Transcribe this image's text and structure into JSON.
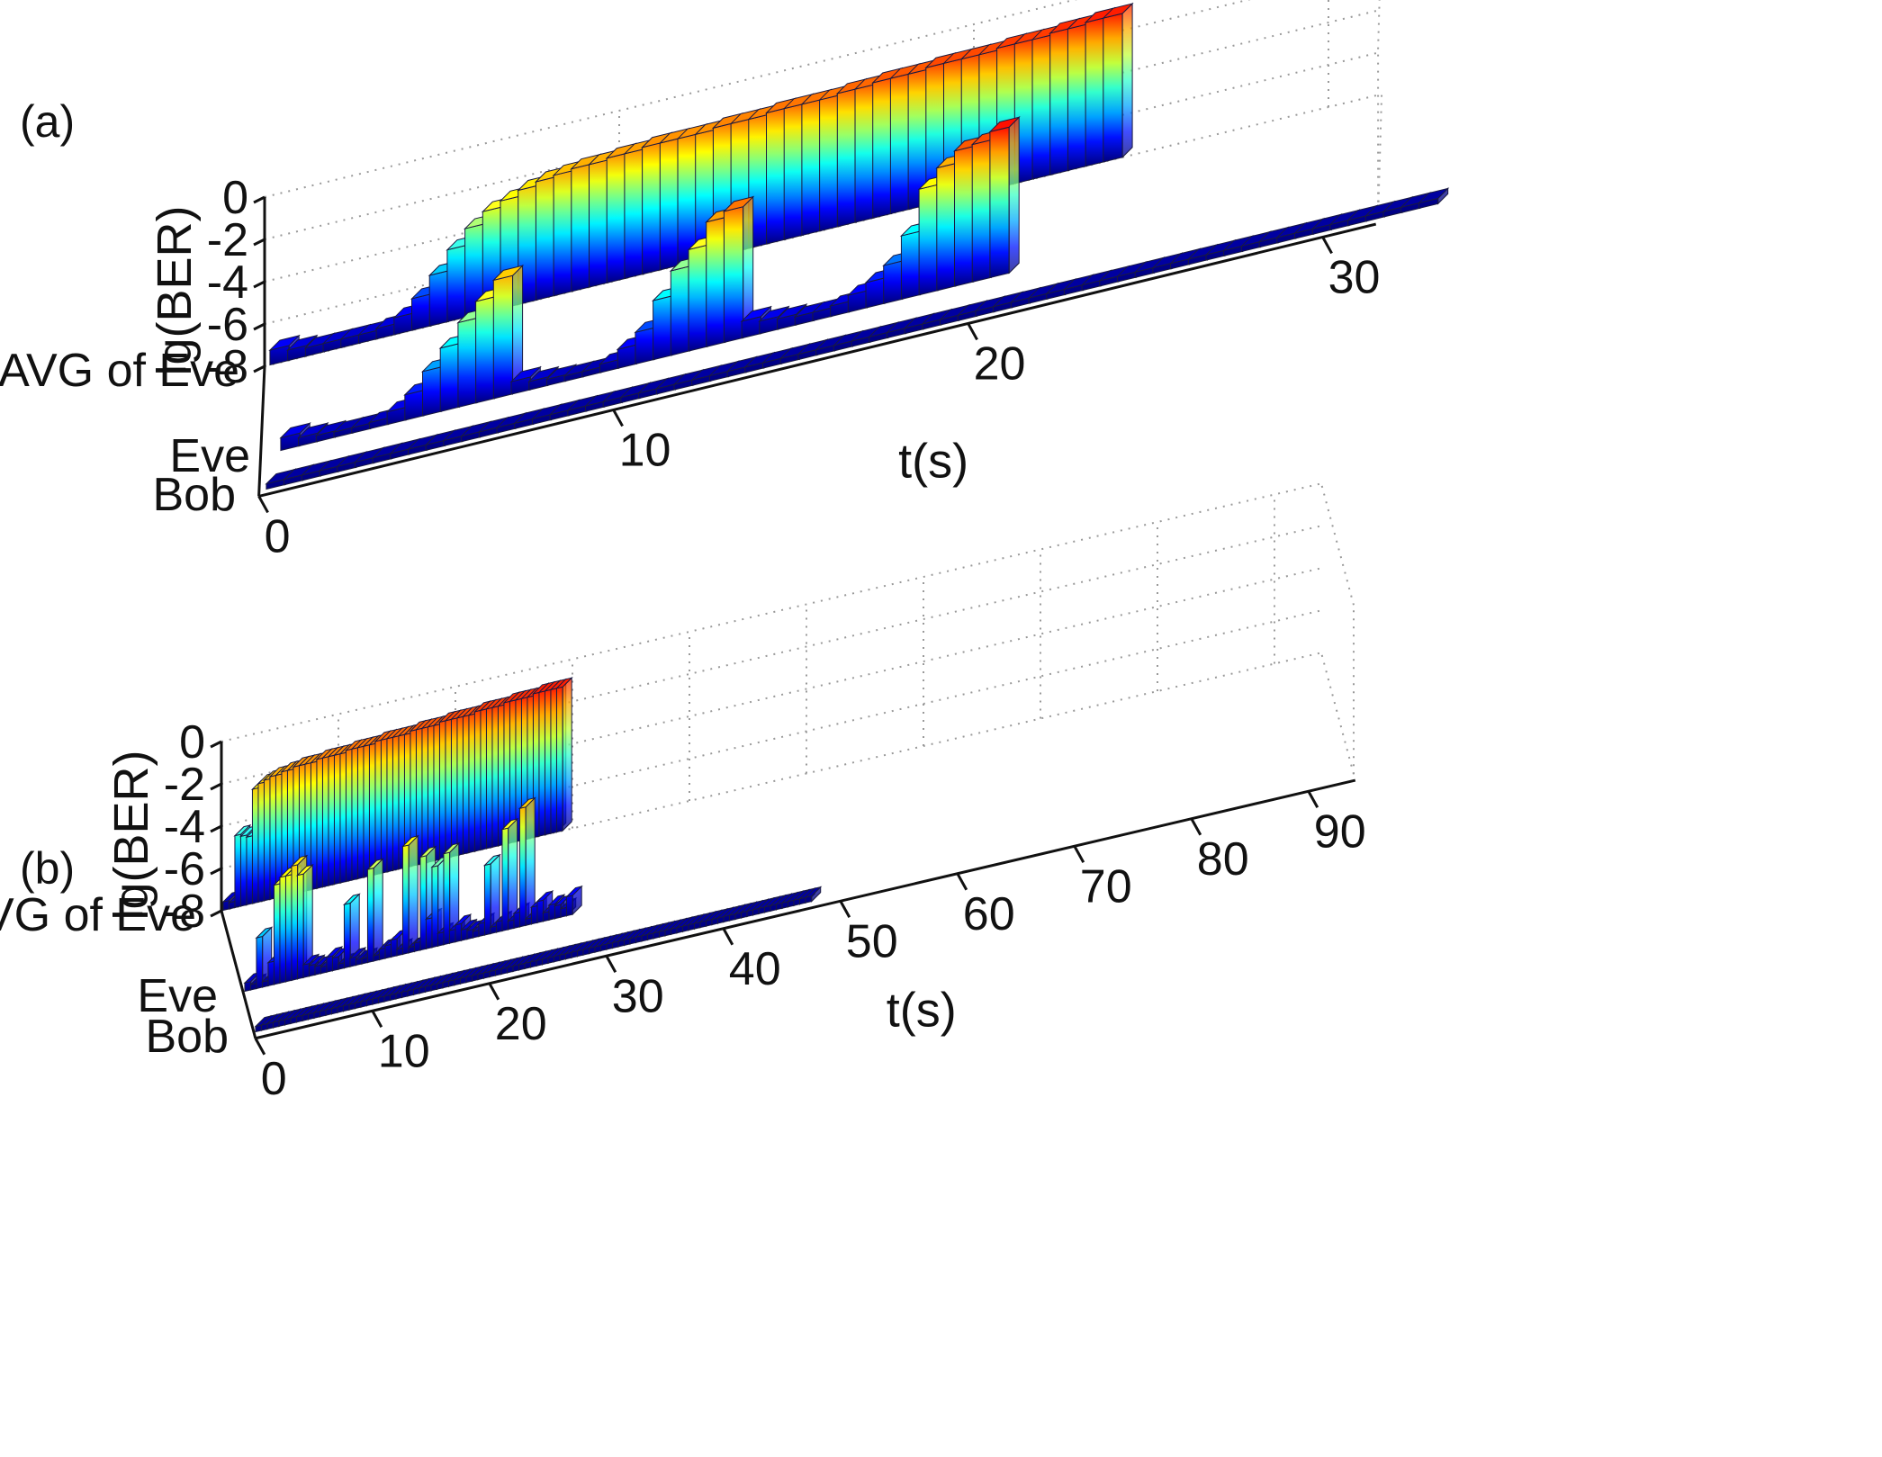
{
  "figure": {
    "panel_labels": [
      "(a)",
      "(b)"
    ]
  },
  "chart_data": [
    {
      "type": "bar3d",
      "label": "(a)",
      "xlabel": "t(s)",
      "ylabel": "lg(BER)",
      "zlim": [
        -8,
        0
      ],
      "z_ticks": [
        "0",
        "-2",
        "-4",
        "-6",
        "-8"
      ],
      "t_ticks": [
        "0",
        "10",
        "20",
        "30"
      ],
      "t_tick_values": [
        0,
        10,
        20,
        30
      ],
      "rows": [
        "AVG of Eve",
        "Eve",
        "Bob"
      ],
      "series": [
        {
          "name": "AVG of Eve",
          "values": [
            -7.3,
            -7.5,
            -7.6,
            -7.6,
            -7.6,
            -7.6,
            -7.5,
            -7.2,
            -6.5,
            -5.6,
            -4.6,
            -3.8,
            -3.2,
            -2.9,
            -2.6,
            -2.4,
            -2.3,
            -2.2,
            -2.2,
            -2.1,
            -2.1,
            -2.0,
            -2.0,
            -2.0,
            -2.0,
            -1.9,
            -1.9,
            -1.9,
            -1.8,
            -1.8,
            -1.8,
            -1.8,
            -1.7,
            -1.7,
            -1.6,
            -1.6,
            -1.6,
            -1.5,
            -1.5,
            -1.5,
            -1.5,
            -1.4,
            -1.4,
            -1.4,
            -1.3,
            -1.3,
            -1.2,
            -1.2
          ]
        },
        {
          "name": "Eve",
          "values": [
            -7.4,
            -7.6,
            -7.7,
            -7.8,
            -7.8,
            -7.7,
            -7.4,
            -6.8,
            -5.9,
            -5.0,
            -4.0,
            -3.2,
            -2.4,
            -7.4,
            -7.6,
            -7.7,
            -7.8,
            -7.8,
            -7.6,
            -7.1,
            -6.5,
            -5.2,
            -4.0,
            -3.2,
            -2.1,
            -1.8,
            -7.2,
            -7.4,
            -7.5,
            -7.6,
            -7.6,
            -7.5,
            -7.2,
            -6.8,
            -6.2,
            -5.0,
            -3.0,
            -2.2,
            -1.6,
            -1.5,
            -1.1
          ]
        },
        {
          "name": "Bob",
          "values": [
            -7.9,
            -7.9,
            -7.9,
            -7.9,
            -7.9,
            -7.9,
            -7.9,
            -7.9,
            -7.9,
            -7.9,
            -7.9,
            -7.9,
            -7.9,
            -7.9,
            -7.9,
            -7.9,
            -7.9,
            -7.9,
            -7.9,
            -7.9,
            -7.9,
            -7.9,
            -7.9,
            -7.9,
            -7.9,
            -7.9,
            -7.9,
            -7.9,
            -7.9,
            -7.9,
            -7.9,
            -7.9,
            -7.9,
            -7.9,
            -7.9,
            -7.9,
            -7.9,
            -7.9,
            -7.9,
            -7.9,
            -7.9,
            -7.9,
            -7.9,
            -7.9,
            -7.9,
            -7.9,
            -7.9,
            -7.9,
            -7.9,
            -7.9,
            -7.9,
            -7.9,
            -7.9,
            -7.9,
            -7.9,
            -7.9,
            -7.9,
            -7.9,
            -7.9,
            -7.9,
            -7.9,
            -7.9,
            -7.9,
            -7.9,
            -7.9,
            -7.9
          ]
        }
      ]
    },
    {
      "type": "bar3d",
      "label": "(b)",
      "xlabel": "t(s)",
      "ylabel": "lg(BER)",
      "zlim": [
        -8,
        0
      ],
      "z_ticks": [
        "0",
        "-2",
        "-4",
        "-6",
        "-8"
      ],
      "t_ticks": [
        "0",
        "10",
        "20",
        "30",
        "40",
        "50",
        "60",
        "70",
        "80",
        "90"
      ],
      "t_tick_values": [
        0,
        10,
        20,
        30,
        40,
        50,
        60,
        70,
        80,
        90
      ],
      "rows": [
        "AVG of Eve",
        "Eve",
        "Bob"
      ],
      "series": [
        {
          "name": "AVG of Eve",
          "values": [
            -7.6,
            -7.7,
            -4.6,
            -4.7,
            -4.8,
            -2.6,
            -2.4,
            -2.3,
            -2.2,
            -2.2,
            -2.1,
            -2.1,
            -2.0,
            -2.0,
            -2.0,
            -2.0,
            -1.9,
            -1.9,
            -1.9,
            -1.9,
            -1.9,
            -1.8,
            -1.8,
            -1.8,
            -1.8,
            -1.8,
            -1.7,
            -1.7,
            -1.7,
            -1.7,
            -1.7,
            -1.7,
            -1.6,
            -1.6,
            -1.6,
            -1.6,
            -1.6,
            -1.5,
            -1.5,
            -1.5,
            -1.5,
            -1.5,
            -1.5,
            -1.4,
            -1.4,
            -1.4,
            -1.4,
            -1.4,
            -1.3,
            -1.3,
            -1.3,
            -1.3,
            -1.3,
            -1.2,
            -1.2,
            -1.2,
            -1.2,
            -1.2
          ]
        },
        {
          "name": "Eve",
          "values": [
            -7.6,
            -7.9,
            -5.6,
            -7.8,
            -6.9,
            -3.3,
            -3.0,
            -3.0,
            -2.6,
            -3.1,
            -7.4,
            -7.5,
            -7.6,
            -7.7,
            -7.3,
            -7.4,
            -7.8,
            -5.0,
            -7.6,
            -7.8,
            -7.9,
            -3.6,
            -7.8,
            -7.5,
            -7.4,
            -7.2,
            -7.7,
            -2.9,
            -7.8,
            -7.6,
            -3.6,
            -6.6,
            -4.2,
            -7.4,
            -3.7,
            -7.4,
            -7.2,
            -7.5,
            -7.6,
            -7.7,
            -7.4,
            -4.7,
            -7.7,
            -7.5,
            -3.2,
            -7.6,
            -7.3,
            -2.4,
            -7.7,
            -7.2,
            -7.0,
            -7.6,
            -7.3,
            -7.4,
            -7.6,
            -7.1
          ]
        },
        {
          "name": "Bob",
          "values": [
            -7.9,
            -7.9,
            -7.9,
            -7.9,
            -7.9,
            -7.9,
            -7.9,
            -7.9,
            -7.9,
            -7.9,
            -7.9,
            -7.9,
            -7.9,
            -7.9,
            -7.9,
            -7.9,
            -7.9,
            -7.9,
            -7.9,
            -7.9,
            -7.9,
            -7.9,
            -7.9,
            -7.9,
            -7.9,
            -7.9,
            -7.9,
            -7.9,
            -7.9,
            -7.9,
            -7.9,
            -7.9,
            -7.9,
            -7.9,
            -7.9,
            -7.9,
            -7.9,
            -7.9,
            -7.9,
            -7.9,
            -7.9,
            -7.9,
            -7.9,
            -7.9,
            -7.9,
            -7.9,
            -7.9,
            -7.9,
            -7.9,
            -7.9,
            -7.9,
            -7.9,
            -7.9,
            -7.9,
            -7.9,
            -7.9,
            -7.9,
            -7.9,
            -7.9,
            -7.9,
            -7.9,
            -7.9,
            -7.9,
            -7.9,
            -7.9,
            -7.9,
            -7.9,
            -7.9,
            -7.9,
            -7.9,
            -7.9,
            -7.9,
            -7.9,
            -7.9,
            -7.9,
            -7.9,
            -7.9,
            -7.9,
            -7.9,
            -7.9,
            -7.9,
            -7.9,
            -7.9,
            -7.9,
            -7.9,
            -7.9,
            -7.9,
            -7.9,
            -7.9,
            -7.9,
            -7.9,
            -7.9,
            -7.9,
            -7.9,
            -7.9
          ]
        }
      ]
    }
  ]
}
